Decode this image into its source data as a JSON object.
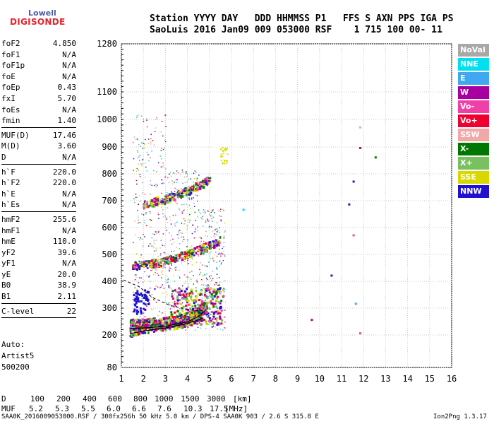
{
  "logo": {
    "top": "Lowell",
    "bottom": "DIGISONDE"
  },
  "header": {
    "line1": "Station YYYY DAY   DDD HHMMSS P1   FFS S AXN PPS IGA PS",
    "line2": "SaoLuis 2016 Jan09 009 053000 RSF    1 715 100 00- 11"
  },
  "params_group1": [
    {
      "name": "foF2",
      "value": "4.850"
    },
    {
      "name": "foF1",
      "value": "N/A"
    },
    {
      "name": "foF1p",
      "value": "N/A"
    },
    {
      "name": "foE",
      "value": "N/A"
    },
    {
      "name": "foEp",
      "value": "0.43"
    },
    {
      "name": "fxI",
      "value": "5.70"
    },
    {
      "name": "foEs",
      "value": "N/A"
    },
    {
      "name": "fmin",
      "value": "1.40"
    }
  ],
  "params_group2": [
    {
      "name": "MUF(D)",
      "value": "17.46"
    },
    {
      "name": "M(D)",
      "value": "3.60"
    },
    {
      "name": "D",
      "value": "N/A"
    }
  ],
  "params_group3": [
    {
      "name": "h`F",
      "value": "220.0"
    },
    {
      "name": "h`F2",
      "value": "220.0"
    },
    {
      "name": "h`E",
      "value": "N/A"
    },
    {
      "name": "h`Es",
      "value": "N/A"
    }
  ],
  "params_group4": [
    {
      "name": "hmF2",
      "value": "255.6"
    },
    {
      "name": "hmF1",
      "value": "N/A"
    },
    {
      "name": "hmE",
      "value": "110.0"
    },
    {
      "name": "yF2",
      "value": "39.6"
    },
    {
      "name": "yF1",
      "value": "N/A"
    },
    {
      "name": "yE",
      "value": "20.0"
    },
    {
      "name": "B0",
      "value": "38.9"
    },
    {
      "name": "B1",
      "value": "2.11"
    }
  ],
  "params_group5": [
    {
      "name": "C-level",
      "value": "22"
    }
  ],
  "auto": {
    "line1": "Auto:",
    "line2": "Artist5",
    "line3": "500200"
  },
  "muf_table": {
    "d_label": "D",
    "d_values": [
      "100",
      "200",
      "400",
      "600",
      "800",
      "1000",
      "1500",
      "3000"
    ],
    "d_unit": "[km]",
    "muf_label": "MUF",
    "muf_values": [
      "5.2",
      "5.3",
      "5.5",
      "6.0",
      "6.6",
      "7.6",
      "10.3",
      "17.5"
    ],
    "muf_unit": "[MHz]"
  },
  "footer": {
    "text": "SAA0K_2016009053000.RSF / 300fx256h 50 kHz 5.0 km / DPS-4 SAA0K 903 / 2.6 S 315.8 E",
    "version": "Ion2Png 1.3.17"
  },
  "legend": [
    {
      "label": "NoVal",
      "color": "#a8a8a8"
    },
    {
      "label": "NNE",
      "color": "#00e0f0"
    },
    {
      "label": "E",
      "color": "#40a8f0"
    },
    {
      "label": "W",
      "color": "#a800a0"
    },
    {
      "label": "Vo-",
      "color": "#f040a8"
    },
    {
      "label": "Vo+",
      "color": "#f00030"
    },
    {
      "label": "SSW",
      "color": "#f0a8a8"
    },
    {
      "label": "X-",
      "color": "#007800"
    },
    {
      "label": "X+",
      "color": "#78c060"
    },
    {
      "label": "SSE",
      "color": "#d8d800"
    },
    {
      "label": "NNW",
      "color": "#2010d0"
    }
  ],
  "chart_data": {
    "type": "scatter",
    "x_ticks": [
      1,
      2,
      3,
      4,
      5,
      6,
      7,
      8,
      9,
      10,
      11,
      12,
      13,
      14,
      15,
      16
    ],
    "y_ticks": [
      80,
      200,
      300,
      400,
      500,
      600,
      700,
      800,
      900,
      1000,
      1100,
      1280
    ],
    "xlim": [
      1,
      16
    ],
    "ylim": [
      80,
      1280
    ],
    "y_scale": "reciprocal-like (ionogram virtual height)",
    "grid": true,
    "traces": [
      {
        "name": "O-trace F2",
        "points": [
          [
            1.4,
            230
          ],
          [
            2.0,
            232
          ],
          [
            3.0,
            238
          ],
          [
            4.0,
            255
          ],
          [
            4.5,
            275
          ],
          [
            4.85,
            300
          ]
        ]
      },
      {
        "name": "X-trace F2",
        "points": [
          [
            1.4,
            205
          ],
          [
            2.0,
            215
          ],
          [
            3.0,
            226
          ],
          [
            4.0,
            243
          ],
          [
            4.7,
            262
          ]
        ]
      },
      {
        "name": "2nd hop",
        "points": [
          [
            1.5,
            450
          ],
          [
            2.5,
            462
          ],
          [
            3.5,
            480
          ],
          [
            4.5,
            510
          ],
          [
            5.5,
            545
          ]
        ]
      },
      {
        "name": "3rd hop",
        "points": [
          [
            2.0,
            680
          ],
          [
            3.0,
            700
          ],
          [
            4.0,
            730
          ],
          [
            5.0,
            770
          ]
        ]
      }
    ]
  }
}
